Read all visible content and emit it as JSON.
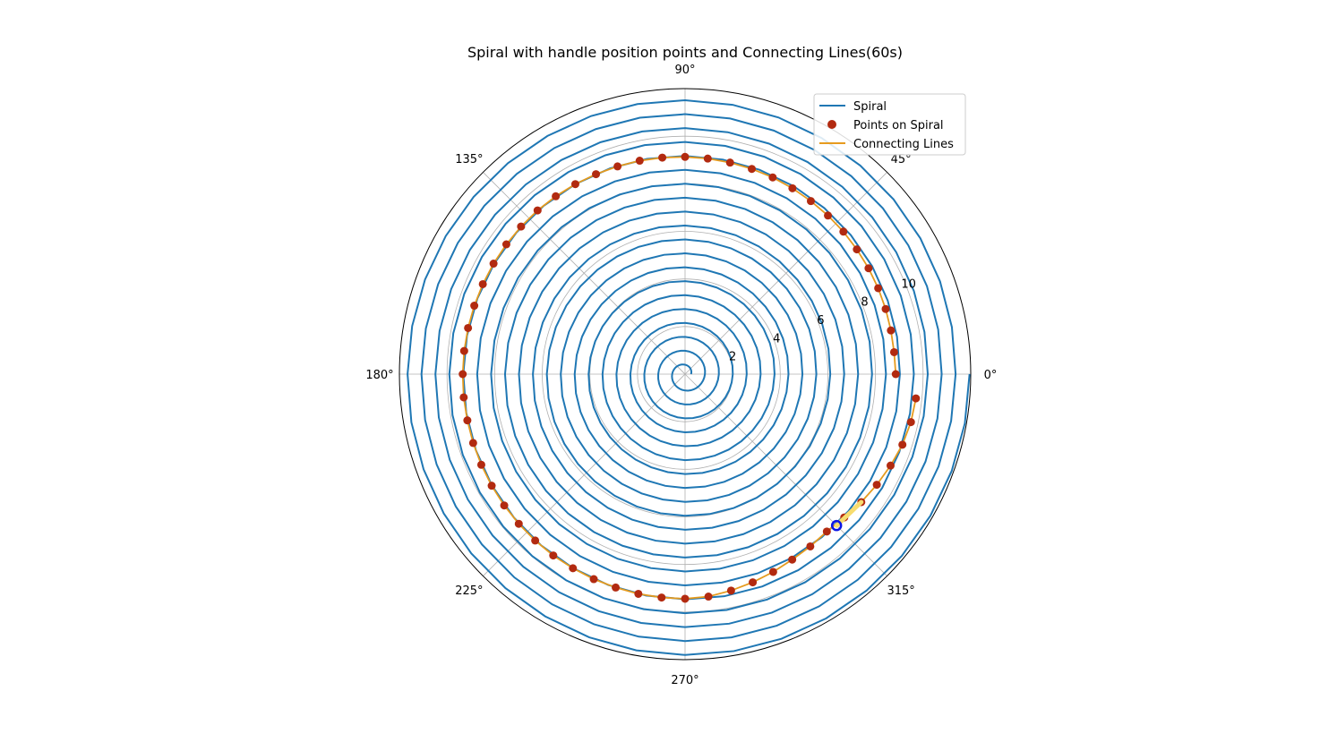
{
  "chart_data": {
    "type": "polar",
    "title": "Spiral with handle position points and Connecting Lines(60s)",
    "theta_ticks": [
      "0°",
      "45°",
      "90°",
      "135°",
      "180°",
      "225°",
      "270°",
      "315°"
    ],
    "r_ticks": [
      "2",
      "4",
      "6",
      "8",
      "10"
    ],
    "r_tick_values": [
      2,
      4,
      6,
      8,
      10
    ],
    "rlim": [
      0,
      12
    ],
    "grid": true,
    "legend_position": "upper right",
    "legend": [
      "Spiral",
      "Points on Spiral",
      "Connecting Lines"
    ],
    "spiral": {
      "name": "Spiral",
      "turns": 20,
      "r_start": 0.25,
      "r_end": 11.95,
      "theta_start_deg": 0,
      "color": "#1f77b4"
    },
    "points": {
      "name": "Points on Spiral",
      "color": "#b22a10",
      "theta_deg": [
        0,
        6,
        12,
        18,
        24,
        30,
        36,
        42,
        48,
        54,
        60,
        66,
        72,
        78,
        84,
        90,
        96,
        102,
        108,
        114,
        120,
        126,
        132,
        138,
        144,
        150,
        156,
        162,
        168,
        174,
        180,
        186,
        192,
        198,
        204,
        210,
        216,
        222,
        228,
        234,
        240,
        246,
        252,
        258,
        264,
        270,
        276,
        282,
        288,
        294,
        300,
        306,
        312,
        318,
        324,
        330,
        336,
        342,
        348,
        354
      ],
      "r": [
        8.85,
        8.83,
        8.84,
        8.86,
        8.88,
        8.9,
        8.92,
        8.95,
        8.97,
        8.99,
        9.02,
        9.05,
        9.07,
        9.09,
        9.11,
        9.13,
        9.15,
        9.17,
        9.18,
        9.2,
        9.22,
        9.24,
        9.26,
        9.27,
        9.28,
        9.29,
        9.3,
        9.31,
        9.32,
        9.33,
        9.34,
        9.35,
        9.35,
        9.36,
        9.37,
        9.38,
        9.39,
        9.4,
        9.41,
        9.42,
        9.42,
        9.43,
        9.43,
        9.44,
        9.44,
        9.44,
        9.4,
        9.3,
        9.2,
        9.1,
        9.0,
        8.95,
        8.9,
        9.0,
        9.15,
        9.3,
        9.45,
        9.6,
        9.7,
        9.75
      ]
    },
    "connecting_lines": {
      "name": "Connecting Lines",
      "color": "#e69b1e"
    },
    "handle": {
      "theta_deg": 315,
      "r": 9.0,
      "color": "#0a14e6",
      "trail_color": "#f7dc6f",
      "trail_from_deg": 326
    }
  }
}
